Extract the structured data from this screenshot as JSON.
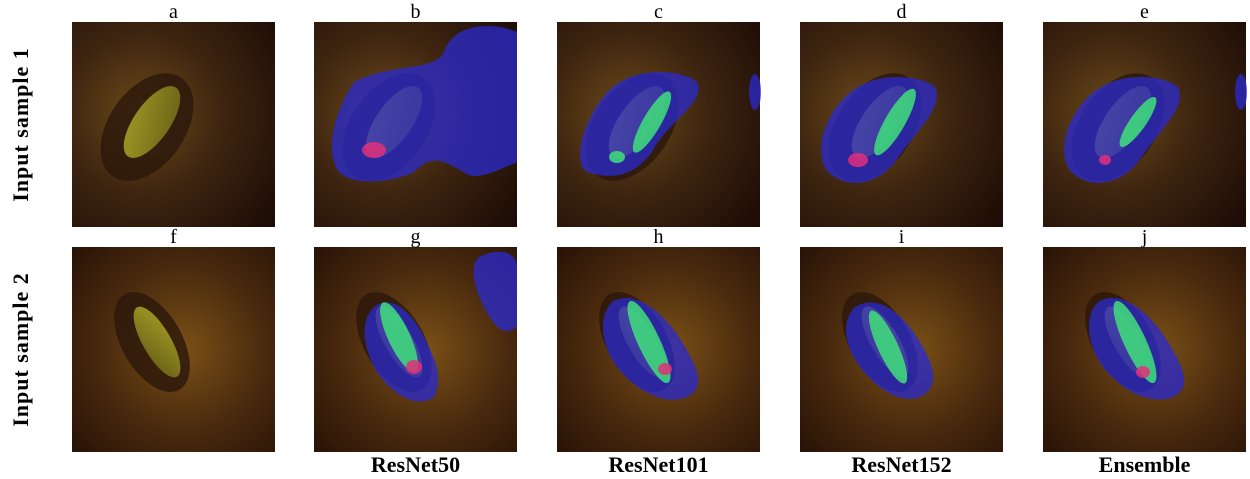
{
  "row_labels": [
    "Input sample 1",
    "Input sample 2"
  ],
  "panels": [
    [
      "a",
      "b",
      "c",
      "d",
      "e"
    ],
    [
      "f",
      "g",
      "h",
      "i",
      "j"
    ]
  ],
  "column_labels": [
    "ResNet50",
    "ResNet101",
    "ResNet152",
    "Ensemble"
  ]
}
